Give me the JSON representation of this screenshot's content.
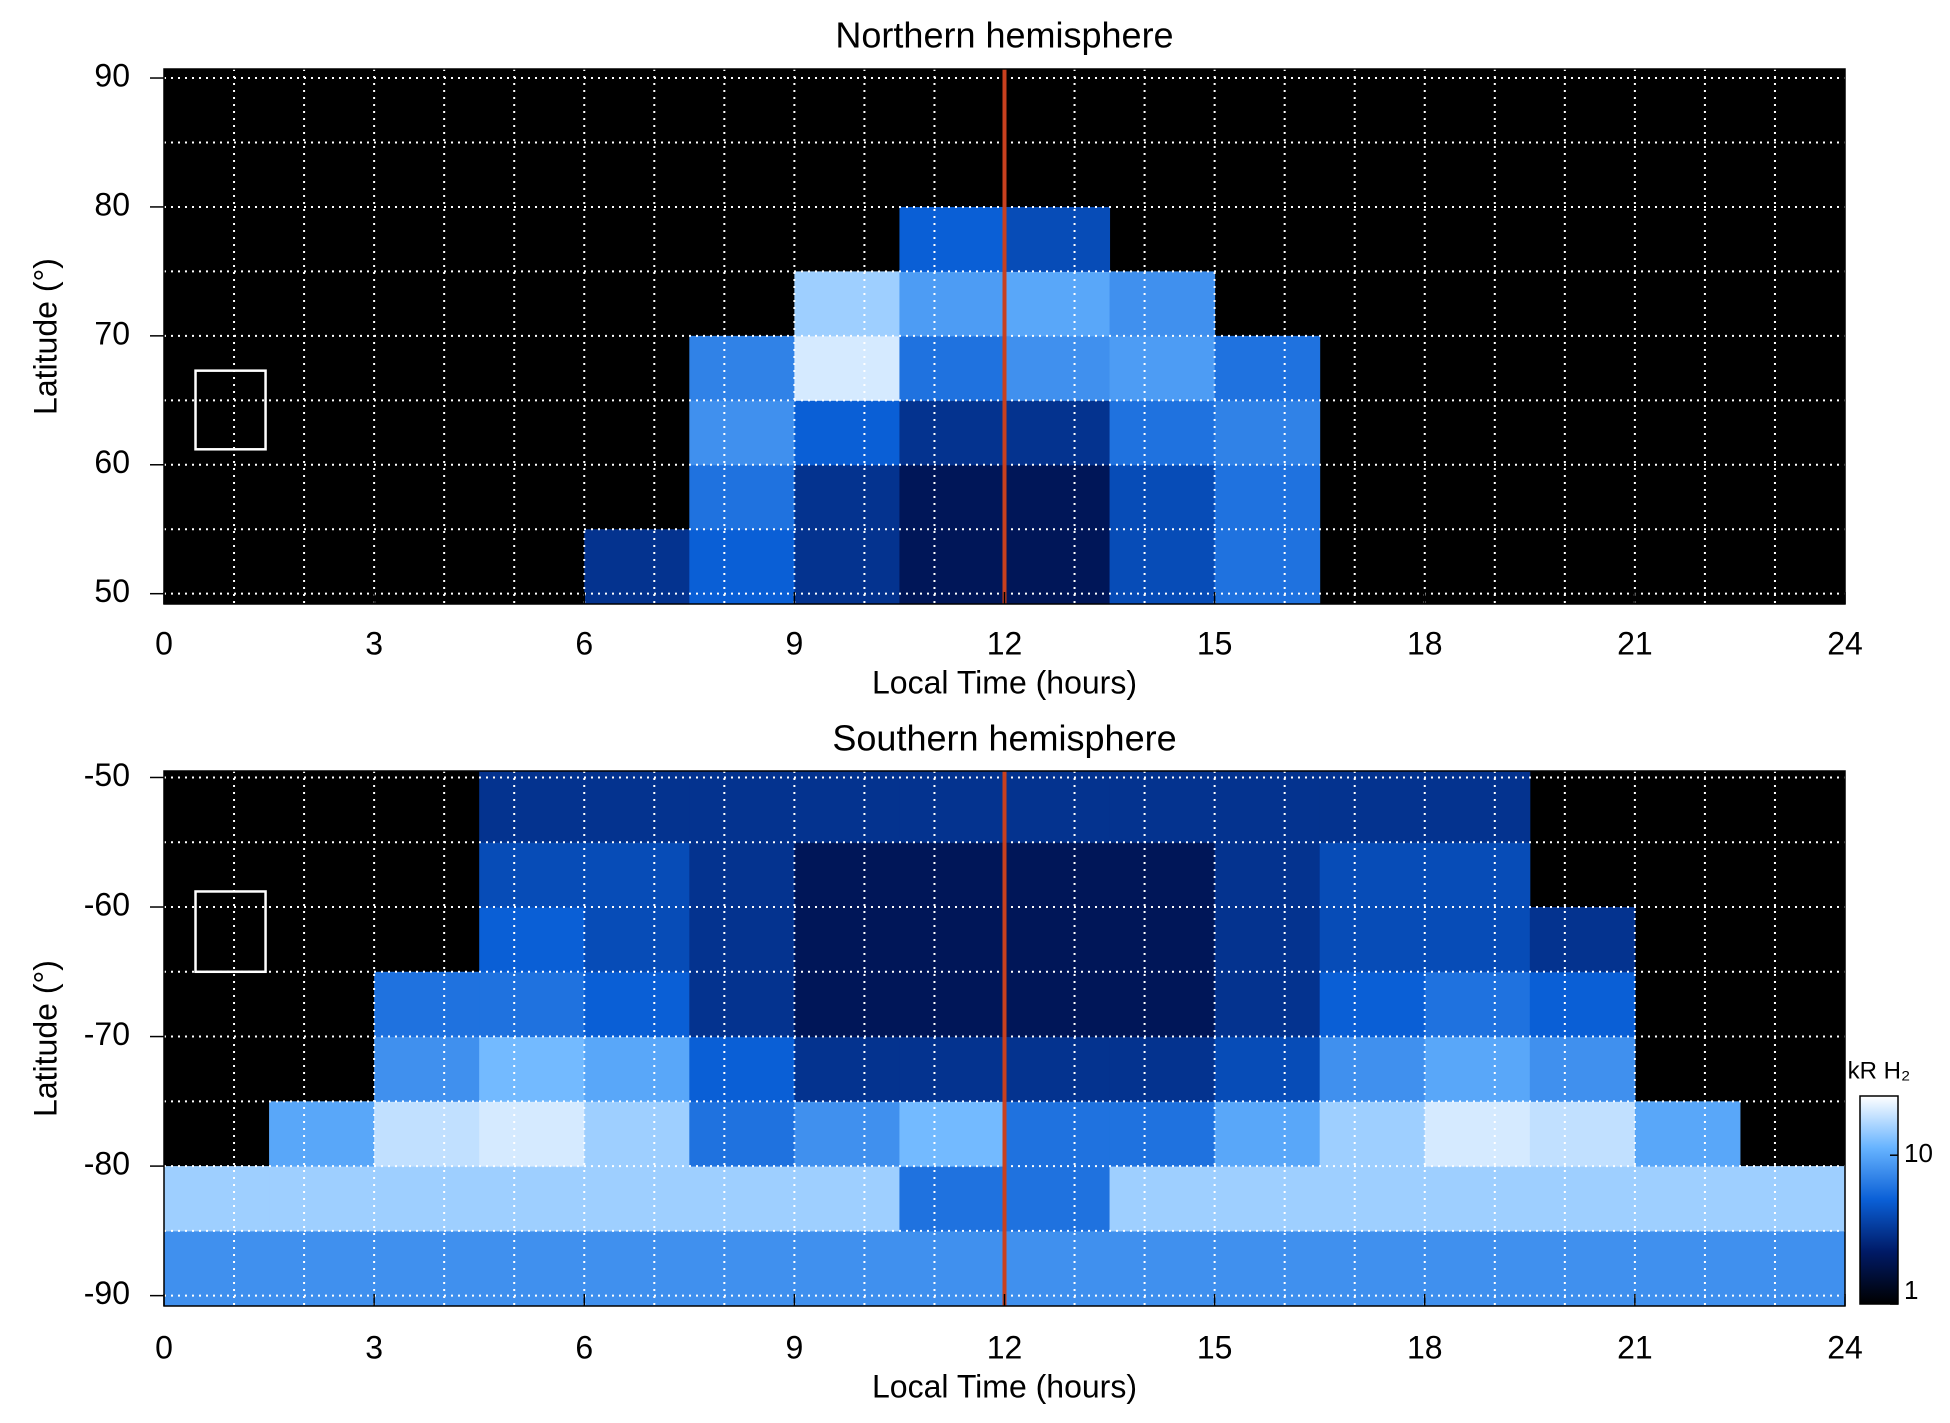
{
  "chart_data": [
    {
      "type": "heatmap",
      "title": "Northern hemisphere",
      "x_label": "Local Time (hours)",
      "y_label": "Latitude (°)",
      "xlim": [
        0,
        24
      ],
      "xticks": [
        0,
        3,
        6,
        9,
        12,
        15,
        18,
        21,
        24
      ],
      "ylim": [
        49.2,
        90.7
      ],
      "yticks": [
        50,
        60,
        70,
        80,
        90
      ],
      "grid": true,
      "grid_xstep": 1,
      "grid_ystep": 5,
      "grid_color": "#ffffff",
      "vline": 12,
      "vline_color": "#c8401e",
      "box": {
        "x": [
          0.45,
          1.45
        ],
        "y": [
          61.2,
          67.3
        ]
      },
      "colormap": [
        "#000000",
        "#001a66",
        "#0a5fd6",
        "#66b3ff",
        "#ffffff"
      ],
      "zlim": [
        1,
        25
      ],
      "zscale": "log",
      "x_bins": [
        0,
        1.5,
        3,
        4.5,
        6,
        7.5,
        9,
        10.5,
        12,
        13.5,
        15,
        16.5,
        18,
        19.5,
        21,
        22.5,
        24
      ],
      "y_bins": [
        49.2,
        55,
        60,
        65,
        70,
        75,
        80,
        85,
        90.7
      ],
      "z": [
        [
          null,
          null,
          null,
          null,
          3,
          5,
          3,
          2,
          2,
          4,
          6,
          null,
          null,
          null,
          null,
          null
        ],
        [
          null,
          null,
          null,
          null,
          null,
          6,
          3,
          2,
          2,
          4,
          6,
          null,
          null,
          null,
          null,
          null
        ],
        [
          null,
          null,
          null,
          null,
          null,
          8,
          5,
          3,
          3,
          6,
          7,
          null,
          null,
          null,
          null,
          null
        ],
        [
          null,
          null,
          null,
          null,
          null,
          7,
          20,
          6,
          8,
          9,
          6,
          null,
          null,
          null,
          null,
          null
        ],
        [
          null,
          null,
          null,
          null,
          null,
          null,
          15,
          9,
          10,
          8,
          null,
          null,
          null,
          null,
          null,
          null
        ],
        [
          null,
          null,
          null,
          null,
          null,
          null,
          null,
          5,
          4,
          null,
          null,
          null,
          null,
          null,
          null,
          null
        ],
        [
          null,
          null,
          null,
          null,
          null,
          null,
          null,
          null,
          null,
          null,
          null,
          null,
          null,
          null,
          null,
          null
        ],
        [
          null,
          null,
          null,
          null,
          null,
          null,
          null,
          null,
          null,
          null,
          null,
          null,
          null,
          null,
          null,
          null
        ]
      ]
    },
    {
      "type": "heatmap",
      "title": "Southern hemisphere",
      "x_label": "Local Time (hours)",
      "y_label": "Latitude (°)",
      "xlim": [
        0,
        24
      ],
      "xticks": [
        0,
        3,
        6,
        9,
        12,
        15,
        18,
        21,
        24
      ],
      "ylim": [
        -90.8,
        -49.5
      ],
      "yticks": [
        -90,
        -80,
        -70,
        -60,
        -50
      ],
      "grid": true,
      "grid_xstep": 1,
      "grid_ystep": 5,
      "grid_color": "#ffffff",
      "vline": 12,
      "vline_color": "#c8401e",
      "box": {
        "x": [
          0.45,
          1.45
        ],
        "y": [
          -65,
          -58.8
        ]
      },
      "colormap": [
        "#000000",
        "#001a66",
        "#0a5fd6",
        "#66b3ff",
        "#ffffff"
      ],
      "zlim": [
        1,
        25
      ],
      "zscale": "log",
      "colorbar": {
        "label": "kR H₂",
        "ticks": [
          1,
          10
        ]
      },
      "x_bins": [
        0,
        1.5,
        3,
        4.5,
        6,
        7.5,
        9,
        10.5,
        12,
        13.5,
        15,
        16.5,
        18,
        19.5,
        21,
        22.5,
        24
      ],
      "y_bins": [
        -90.8,
        -85,
        -80,
        -75,
        -70,
        -65,
        -60,
        -55,
        -49.5
      ],
      "z": [
        [
          8,
          8,
          8,
          8,
          8,
          8,
          8,
          8,
          8,
          8,
          8,
          8,
          8,
          8,
          8,
          8
        ],
        [
          15,
          15,
          15,
          15,
          15,
          15,
          15,
          6,
          6,
          15,
          15,
          15,
          15,
          15,
          15,
          15
        ],
        [
          null,
          10,
          18,
          20,
          15,
          6,
          8,
          12,
          6,
          6,
          10,
          15,
          20,
          18,
          10,
          null
        ],
        [
          null,
          null,
          8,
          12,
          10,
          5,
          3,
          3,
          3,
          3,
          4,
          8,
          10,
          8,
          null,
          null
        ],
        [
          null,
          null,
          6,
          6,
          5,
          3,
          2,
          2,
          2,
          2,
          3,
          5,
          6,
          5,
          null,
          null
        ],
        [
          null,
          null,
          null,
          5,
          4,
          3,
          2,
          2,
          2,
          2,
          3,
          4,
          4,
          3,
          null,
          null
        ],
        [
          null,
          null,
          null,
          4,
          4,
          3,
          2,
          2,
          2,
          2,
          3,
          4,
          4,
          null,
          null,
          null
        ],
        [
          null,
          null,
          null,
          3,
          3,
          3,
          3,
          3,
          3,
          3,
          3,
          3,
          3,
          null,
          null,
          null
        ]
      ]
    }
  ]
}
